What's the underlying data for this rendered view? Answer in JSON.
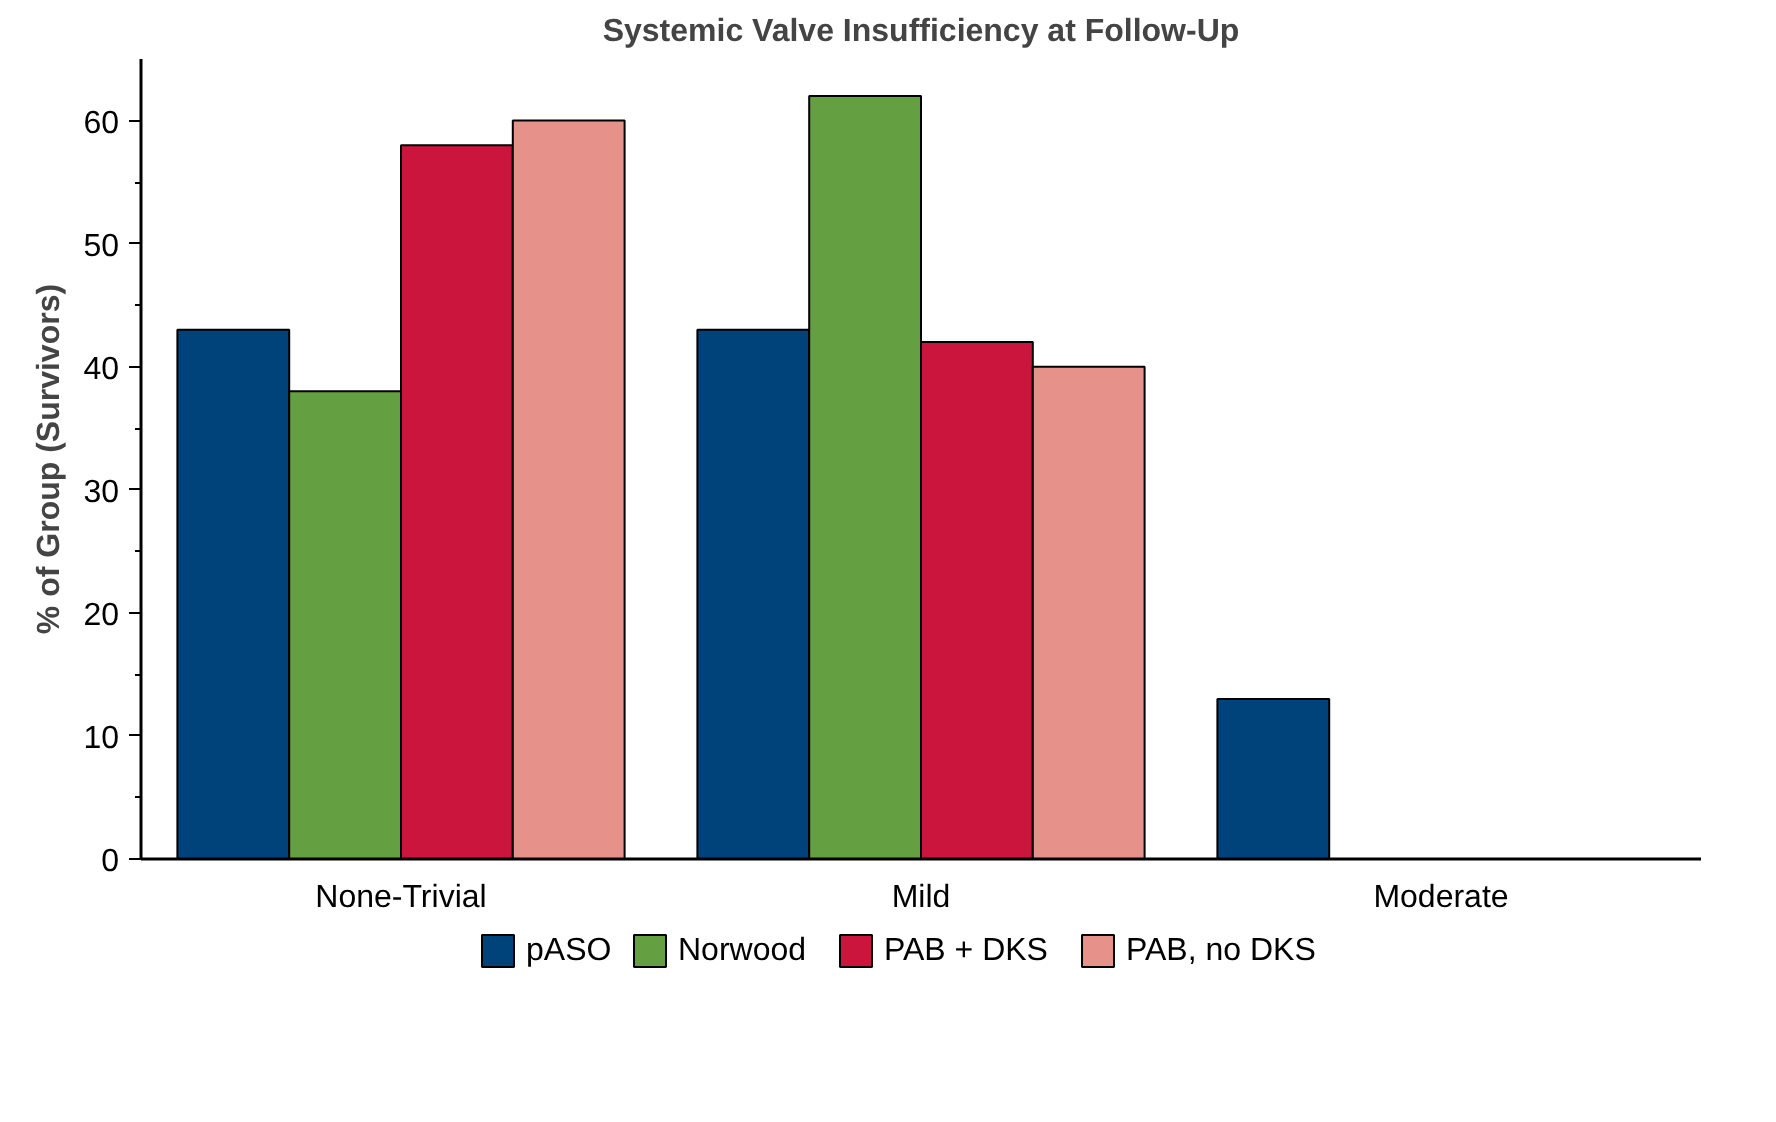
{
  "chart_data": {
    "type": "bar",
    "title": "Systemic Valve Insufficiency at Follow-Up",
    "ylabel": "% of Group (Survivors)",
    "categories": [
      "None-Trivial",
      "Mild",
      "Moderate"
    ],
    "series": [
      {
        "name": "pASO",
        "color": "#00427a",
        "values": [
          43,
          43,
          13
        ]
      },
      {
        "name": "Norwood",
        "color": "#64a042",
        "values": [
          38,
          62,
          0
        ]
      },
      {
        "name": "PAB + DKS",
        "color": "#cc153d",
        "values": [
          58,
          42,
          0
        ]
      },
      {
        "name": "PAB, no DKS",
        "color": "#e6918a",
        "values": [
          60,
          40,
          0
        ]
      }
    ],
    "ylim": [
      0,
      65
    ],
    "yticks": [
      0,
      10,
      20,
      30,
      40,
      50,
      60
    ],
    "grid": false,
    "legend": "bottom"
  }
}
